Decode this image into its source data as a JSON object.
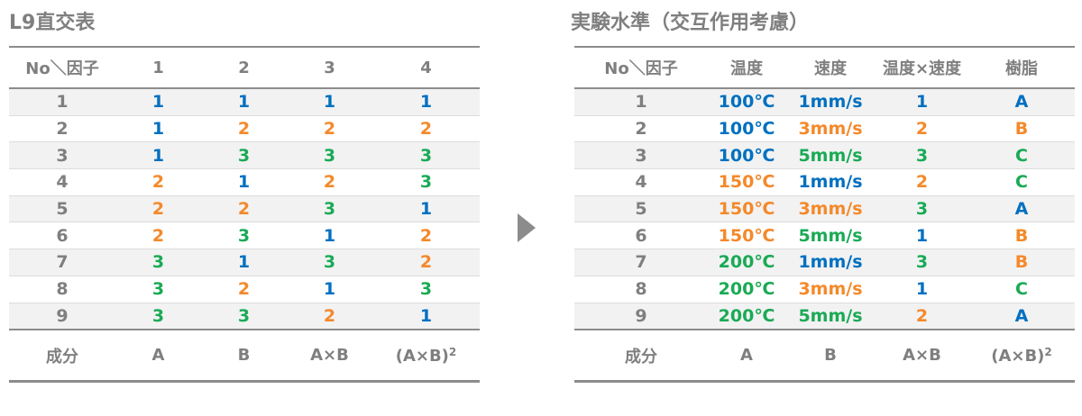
{
  "colors": {
    "level1": "#0070c0",
    "level2": "#f4892a",
    "level3": "#1aaa55",
    "text": "#7f7f7f"
  },
  "left": {
    "title": "L9直交表",
    "headers": [
      "No＼因子",
      "1",
      "2",
      "3",
      "4"
    ],
    "rows": [
      [
        "1",
        "1",
        "1",
        "1",
        "1"
      ],
      [
        "2",
        "1",
        "2",
        "2",
        "2"
      ],
      [
        "3",
        "1",
        "3",
        "3",
        "3"
      ],
      [
        "4",
        "2",
        "1",
        "2",
        "3"
      ],
      [
        "5",
        "2",
        "2",
        "3",
        "1"
      ],
      [
        "6",
        "2",
        "3",
        "1",
        "2"
      ],
      [
        "7",
        "3",
        "1",
        "3",
        "2"
      ],
      [
        "8",
        "3",
        "2",
        "1",
        "3"
      ],
      [
        "9",
        "3",
        "3",
        "2",
        "1"
      ]
    ],
    "footer": [
      "成分",
      "A",
      "B",
      "A×B",
      "(A×B)",
      "2"
    ]
  },
  "arrow_icon": "triangle-right-icon",
  "right": {
    "title": "実験水準（交互作用考慮）",
    "headers": [
      "No＼因子",
      "温度",
      "速度",
      "温度×速度",
      "樹脂"
    ],
    "rows": [
      {
        "no": "1",
        "temp": "100℃",
        "temp_level": 1,
        "speed": "1mm/s",
        "speed_level": 1,
        "inter": "1",
        "inter_level": 1,
        "resin": "A",
        "resin_level": 1
      },
      {
        "no": "2",
        "temp": "100℃",
        "temp_level": 1,
        "speed": "3mm/s",
        "speed_level": 2,
        "inter": "2",
        "inter_level": 2,
        "resin": "B",
        "resin_level": 2
      },
      {
        "no": "3",
        "temp": "100℃",
        "temp_level": 1,
        "speed": "5mm/s",
        "speed_level": 3,
        "inter": "3",
        "inter_level": 3,
        "resin": "C",
        "resin_level": 3
      },
      {
        "no": "4",
        "temp": "150℃",
        "temp_level": 2,
        "speed": "1mm/s",
        "speed_level": 1,
        "inter": "2",
        "inter_level": 2,
        "resin": "C",
        "resin_level": 3
      },
      {
        "no": "5",
        "temp": "150℃",
        "temp_level": 2,
        "speed": "3mm/s",
        "speed_level": 2,
        "inter": "3",
        "inter_level": 3,
        "resin": "A",
        "resin_level": 1
      },
      {
        "no": "6",
        "temp": "150℃",
        "temp_level": 2,
        "speed": "5mm/s",
        "speed_level": 3,
        "inter": "1",
        "inter_level": 1,
        "resin": "B",
        "resin_level": 2
      },
      {
        "no": "7",
        "temp": "200℃",
        "temp_level": 3,
        "speed": "1mm/s",
        "speed_level": 1,
        "inter": "3",
        "inter_level": 3,
        "resin": "B",
        "resin_level": 2
      },
      {
        "no": "8",
        "temp": "200℃",
        "temp_level": 3,
        "speed": "3mm/s",
        "speed_level": 2,
        "inter": "1",
        "inter_level": 1,
        "resin": "C",
        "resin_level": 3
      },
      {
        "no": "9",
        "temp": "200℃",
        "temp_level": 3,
        "speed": "5mm/s",
        "speed_level": 3,
        "inter": "2",
        "inter_level": 2,
        "resin": "A",
        "resin_level": 1
      }
    ],
    "footer": [
      "成分",
      "A",
      "B",
      "A×B",
      "(A×B)",
      "2"
    ]
  }
}
